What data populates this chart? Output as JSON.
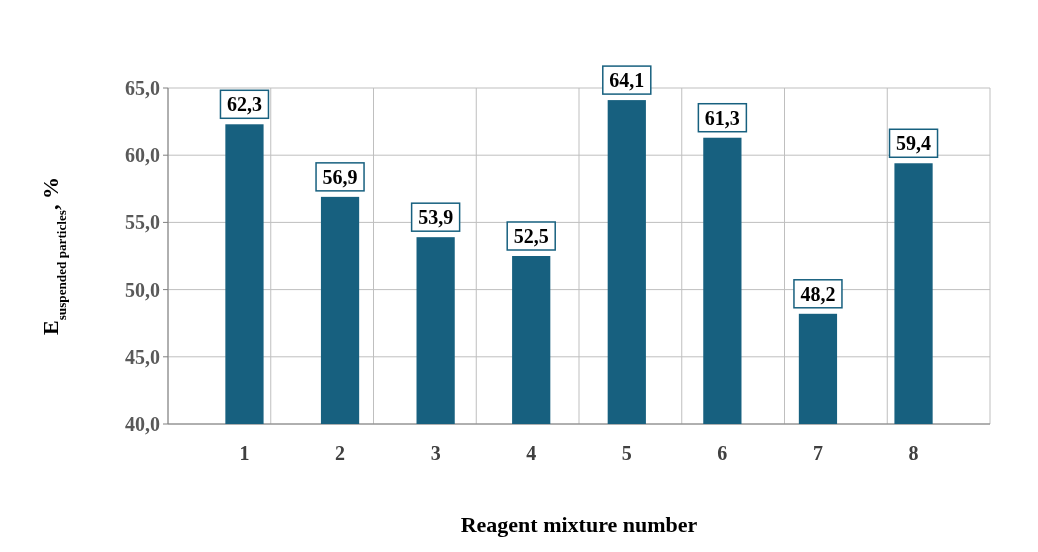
{
  "chart_data": {
    "type": "bar",
    "xlabel": "Reagent mixture number",
    "ylabel": "E$_{suspended particles}$, %",
    "categories": [
      "1",
      "2",
      "3",
      "4",
      "5",
      "6",
      "7",
      "8"
    ],
    "values": [
      62.3,
      56.9,
      53.9,
      52.5,
      64.1,
      61.3,
      48.2,
      59.4
    ],
    "value_labels": [
      "62,3",
      "56,9",
      "53,9",
      "52,5",
      "64,1",
      "61,3",
      "48,2",
      "59,4"
    ],
    "color": "#17607f",
    "ylim": [
      40,
      65
    ],
    "yticks": [
      {
        "value": 40,
        "label": "40,0"
      },
      {
        "value": 45,
        "label": "45,0"
      },
      {
        "value": 50,
        "label": "50,0"
      },
      {
        "value": 55,
        "label": "55,0"
      },
      {
        "value": 60,
        "label": "60,0"
      },
      {
        "value": 65,
        "label": "65,0"
      }
    ],
    "grid": true
  }
}
